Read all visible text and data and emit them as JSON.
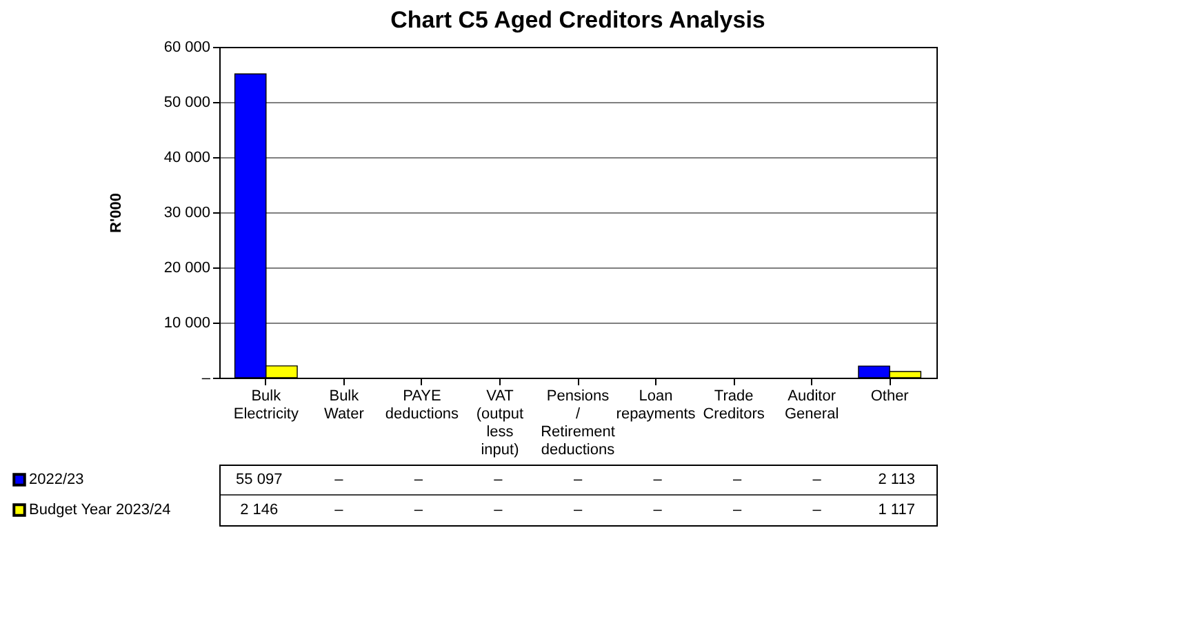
{
  "chart_data": {
    "type": "bar",
    "title": "Chart C5 Aged Creditors Analysis",
    "ylabel": "R'000",
    "categories": [
      "Bulk Electricity",
      "Bulk Water",
      "PAYE deductions",
      "VAT (output less input)",
      "Pensions / Retirement deductions",
      "Loan repayments",
      "Trade Creditors",
      "Auditor General",
      "Other"
    ],
    "series": [
      {
        "name": "2022/23",
        "color": "#0000ff",
        "values": [
          55097,
          0,
          0,
          0,
          0,
          0,
          0,
          0,
          2113
        ],
        "value_labels": [
          "55 097",
          "–",
          "–",
          "–",
          "–",
          "–",
          "–",
          "–",
          "2 113"
        ]
      },
      {
        "name": "Budget Year 2023/24",
        "color": "#ffff00",
        "values": [
          2146,
          0,
          0,
          0,
          0,
          0,
          0,
          0,
          1117
        ],
        "value_labels": [
          "2 146",
          "–",
          "–",
          "–",
          "–",
          "–",
          "–",
          "–",
          "1 117"
        ]
      }
    ],
    "ylim": [
      0,
      60000
    ],
    "yticks": [
      {
        "value": 0,
        "label": "–"
      },
      {
        "value": 10000,
        "label": "10 000"
      },
      {
        "value": 20000,
        "label": "20 000"
      },
      {
        "value": 30000,
        "label": "30 000"
      },
      {
        "value": 40000,
        "label": "40 000"
      },
      {
        "value": 50000,
        "label": "50 000"
      },
      {
        "value": 60000,
        "label": "60 000"
      }
    ],
    "grid": "y",
    "legend": "bottom"
  }
}
